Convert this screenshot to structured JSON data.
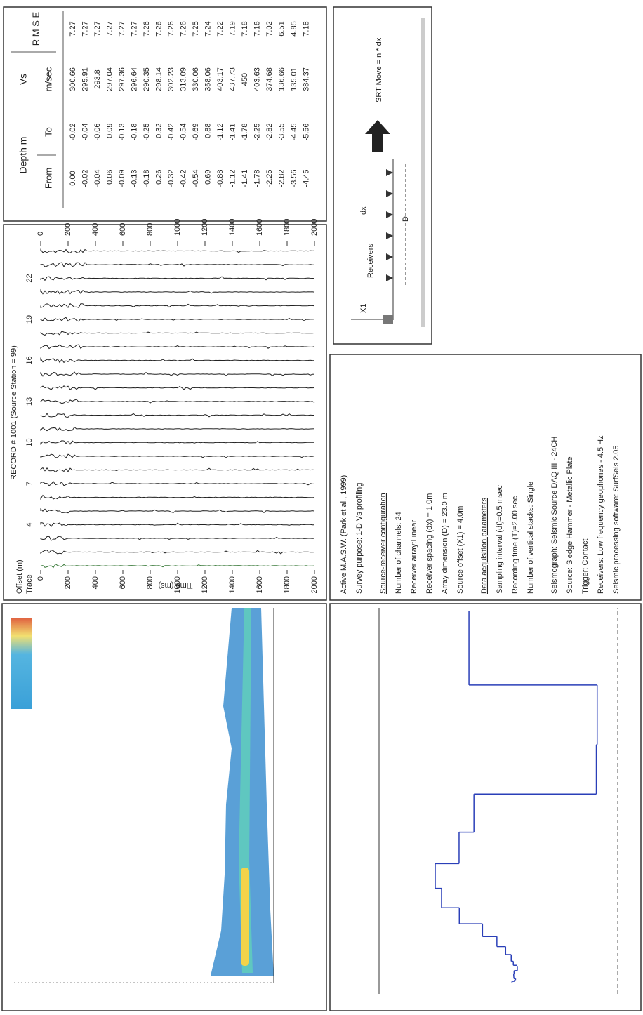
{
  "record": {
    "title": "RECORD # 1001 (Source Station = 99)",
    "offset_label": "Offset (m)",
    "trace_label": "Trace",
    "time_label": "Time (ms)",
    "trace_ticks": [
      4,
      7,
      10,
      13,
      16,
      19,
      22
    ],
    "time_ticks": [
      0,
      200,
      400,
      600,
      800,
      1000,
      1200,
      1400,
      1600,
      1800,
      2000
    ]
  },
  "parameters": [
    {
      "text": "Active M.A.S.W. (Park et al., 1999)",
      "heading": false
    },
    {
      "text": "Survey purpose: 1-D Vs profiling",
      "heading": false
    },
    {
      "text": "Source-receiver configuration",
      "heading": true
    },
    {
      "text": "Number of channels: 24",
      "heading": false
    },
    {
      "text": "Receiver array:Linear",
      "heading": false
    },
    {
      "text": "Receiver spacing (dx) = 1.0m",
      "heading": false
    },
    {
      "text": "Array dimension (D) = 23.0 m",
      "heading": false
    },
    {
      "text": "Source offset (X1) = 4.0m",
      "heading": false
    },
    {
      "text": "Data acquisition parameters",
      "heading": true
    },
    {
      "text": "Sampling interval (dt)=0.5 msec",
      "heading": false
    },
    {
      "text": "Recording time (T)=2.00 sec",
      "heading": false
    },
    {
      "text": "Number of vertical stacks: Single",
      "heading": false
    },
    {
      "text": "Seismograph: Seismic Source DAQ III - 24CH",
      "heading": false,
      "gap": true
    },
    {
      "text": "Source: Sledge Hammer - Metallic Plate",
      "heading": false
    },
    {
      "text": "Trigger: Contact",
      "heading": false
    },
    {
      "text": "Receivers: Low frequency geophones - 4.5 Hz",
      "heading": false
    },
    {
      "text": "Seismic processing software: SurfSeis 2.05",
      "heading": false
    }
  ],
  "table": {
    "group": "Depth m",
    "from": "From",
    "to": "To",
    "vs": "Vs",
    "vs_unit": "m/sec",
    "rmse": "R M S E",
    "rows": [
      [
        "0.00",
        "-0.02",
        "300.66",
        "7.27"
      ],
      [
        "-0.02",
        "-0.04",
        "295.91",
        "7.27"
      ],
      [
        "-0.04",
        "-0.06",
        "293.8",
        "7.27"
      ],
      [
        "-0.06",
        "-0.09",
        "297.04",
        "7.27"
      ],
      [
        "-0.09",
        "-0.13",
        "297.36",
        "7.27"
      ],
      [
        "-0.13",
        "-0.18",
        "296.64",
        "7.27"
      ],
      [
        "-0.18",
        "-0.25",
        "290.35",
        "7.26"
      ],
      [
        "-0.26",
        "-0.32",
        "298.14",
        "7.26"
      ],
      [
        "-0.32",
        "-0.42",
        "302.23",
        "7.26"
      ],
      [
        "-0.42",
        "-0.54",
        "313.09",
        "7.26"
      ],
      [
        "-0.54",
        "-0.69",
        "330.06",
        "7.25"
      ],
      [
        "-0.69",
        "-0.88",
        "358.06",
        "7.24"
      ],
      [
        "-0.88",
        "-1.12",
        "403.17",
        "7.22"
      ],
      [
        "-1.12",
        "-1.41",
        "437.73",
        "7.19"
      ],
      [
        "-1.41",
        "-1.78",
        "450",
        "7.18"
      ],
      [
        "-1.78",
        "-2.25",
        "403.63",
        "7.16"
      ],
      [
        "-2.25",
        "-2.82",
        "374.68",
        "7.02"
      ],
      [
        "-2.82",
        "-3.55",
        "136.66",
        "6.51"
      ],
      [
        "-3.56",
        "-4.45",
        "135.01",
        "4.85"
      ],
      [
        "-4.45",
        "-5.56",
        "384.37",
        "7.18"
      ]
    ]
  },
  "schematic": {
    "x1": "X1",
    "receivers": "Receivers",
    "dx": "dx",
    "d": "D",
    "move": "SRT Move = n * dx"
  }
}
